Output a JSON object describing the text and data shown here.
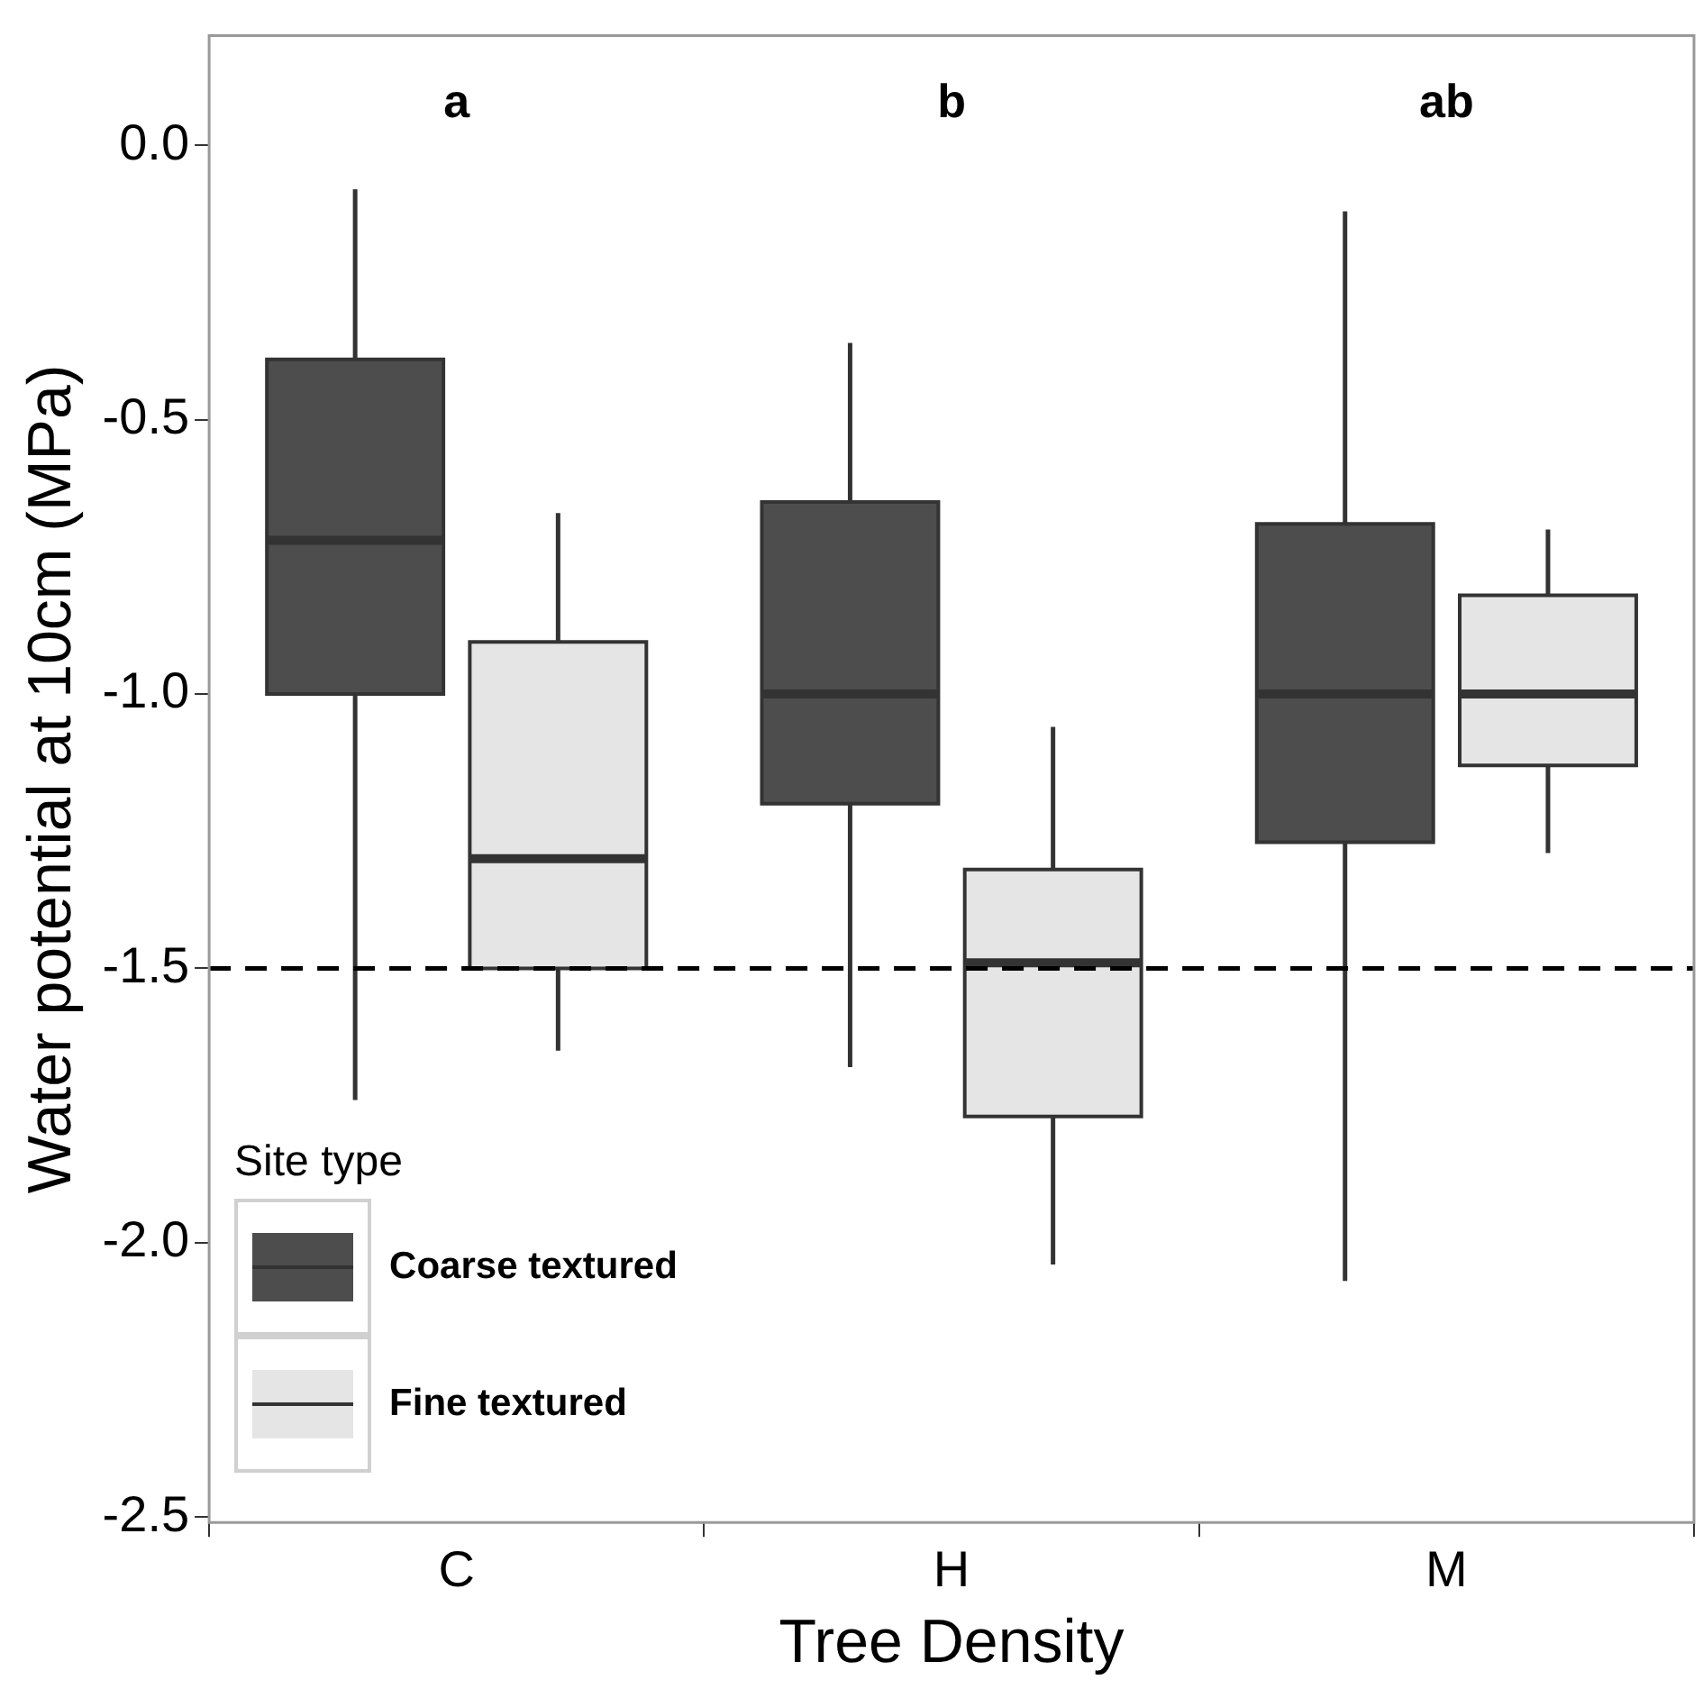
{
  "chart_data": {
    "type": "box",
    "xlabel": "Tree Density",
    "ylabel": "Water potential at 10cm (MPa)",
    "legend_title": "Site type",
    "legend": "bottom left",
    "grid": false,
    "categories": [
      "C",
      "H",
      "M"
    ],
    "series": [
      {
        "name": "Coarse textured",
        "color": "#4d4d4d",
        "boxes": [
          {
            "low": -1.74,
            "q1": -1.0,
            "median": -0.72,
            "q3": -0.39,
            "high": -0.08
          },
          {
            "low": -1.68,
            "q1": -1.2,
            "median": -1.0,
            "q3": -0.65,
            "high": -0.36
          },
          {
            "low": -2.07,
            "q1": -1.27,
            "median": -1.0,
            "q3": -0.69,
            "high": -0.12
          }
        ]
      },
      {
        "name": "Fine textured",
        "color": "#e5e5e5",
        "boxes": [
          {
            "low": -1.65,
            "q1": -1.5,
            "median": -1.3,
            "q3": -0.905,
            "high": -0.67
          },
          {
            "low": -2.04,
            "q1": -1.77,
            "median": -1.49,
            "q3": -1.32,
            "high": -1.06
          },
          {
            "low": -1.29,
            "q1": -1.13,
            "median": -1.0,
            "q3": -0.82,
            "high": -0.7
          }
        ]
      }
    ],
    "ylim": [
      -2.51,
      0.2
    ],
    "yticks": [
      {
        "value": -2.5,
        "label": "-2.5"
      },
      {
        "value": -2,
        "label": "-2.0"
      },
      {
        "value": -1.5,
        "label": "-1.5"
      },
      {
        "value": -1,
        "label": "-1.0"
      },
      {
        "value": -0.5,
        "label": "-0.5"
      },
      {
        "value": 0,
        "label": "0.0"
      }
    ],
    "ref_lines": [
      {
        "axis": "y",
        "value": -1.5,
        "line_style": "dashed",
        "color": "#000000"
      }
    ],
    "annotations": [
      "a",
      "b",
      "ab"
    ]
  }
}
